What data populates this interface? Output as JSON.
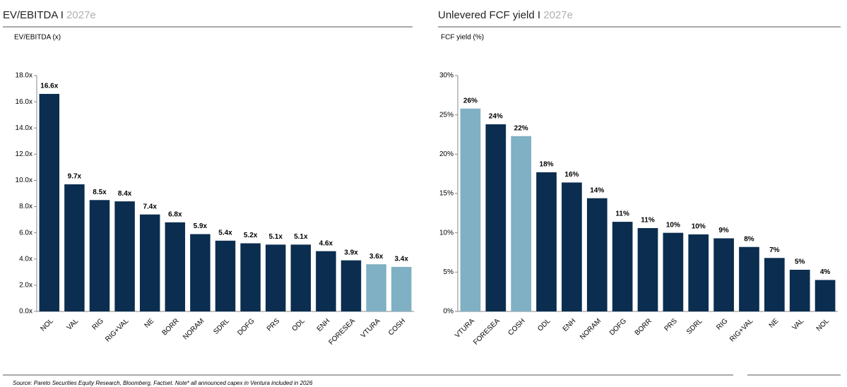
{
  "chart_data": [
    {
      "type": "bar",
      "title": "EV/EBITDA I",
      "subtitle": "2027e",
      "y_label": "EV/EBITDA (x)",
      "categories": [
        "NOL",
        "VAL",
        "RIG",
        "RIG+VAL",
        "NE",
        "BORR",
        "NORAM",
        "SDRL",
        "DOFG",
        "PRS",
        "ODL",
        "ENH",
        "FORESEA",
        "VTURA",
        "COSH"
      ],
      "values": [
        16.6,
        9.7,
        8.5,
        8.4,
        7.4,
        6.8,
        5.9,
        5.4,
        5.2,
        5.1,
        5.1,
        4.6,
        3.9,
        3.6,
        3.4
      ],
      "value_labels": [
        "16.6x",
        "9.7x",
        "8.5x",
        "8.4x",
        "7.4x",
        "6.8x",
        "5.9x",
        "5.4x",
        "5.2x",
        "5.1x",
        "5.1x",
        "4.6x",
        "3.9x",
        "3.6x",
        "3.4x"
      ],
      "colors": [
        "#0b2d4f",
        "#0b2d4f",
        "#0b2d4f",
        "#0b2d4f",
        "#0b2d4f",
        "#0b2d4f",
        "#0b2d4f",
        "#0b2d4f",
        "#0b2d4f",
        "#0b2d4f",
        "#0b2d4f",
        "#0b2d4f",
        "#0b2d4f",
        "#7fb0c3",
        "#7fb0c3"
      ],
      "ylim": [
        0,
        18
      ],
      "yticks": [
        {
          "value": 0,
          "label": "0.0x"
        },
        {
          "value": 2,
          "label": "2.0x"
        },
        {
          "value": 4,
          "label": "4.0x"
        },
        {
          "value": 6,
          "label": "6.0x"
        },
        {
          "value": 8,
          "label": "8.0x"
        },
        {
          "value": 10,
          "label": "10.0x"
        },
        {
          "value": 12,
          "label": "12.0x"
        },
        {
          "value": 14,
          "label": "14.0x"
        },
        {
          "value": 16,
          "label": "16.0x"
        },
        {
          "value": 18,
          "label": "18.0x"
        }
      ]
    },
    {
      "type": "bar",
      "title": "Unlevered FCF yield I",
      "subtitle": "2027e",
      "y_label": "FCF yield (%)",
      "categories": [
        "VTURA",
        "FORESEA",
        "COSH",
        "ODL",
        "ENH",
        "NORAM",
        "DOFG",
        "BORR",
        "PRS",
        "SDRL",
        "RIG",
        "RIG+VAL",
        "NE",
        "VAL",
        "NOL"
      ],
      "values": [
        25.8,
        23.8,
        22.3,
        17.7,
        16.4,
        14.4,
        11.4,
        10.6,
        10.0,
        9.8,
        9.3,
        8.2,
        6.8,
        5.3,
        4.0
      ],
      "value_labels": [
        "26%",
        "24%",
        "22%",
        "18%",
        "16%",
        "14%",
        "11%",
        "11%",
        "10%",
        "10%",
        "9%",
        "8%",
        "7%",
        "5%",
        "4%"
      ],
      "colors": [
        "#7fb0c3",
        "#0b2d4f",
        "#7fb0c3",
        "#0b2d4f",
        "#0b2d4f",
        "#0b2d4f",
        "#0b2d4f",
        "#0b2d4f",
        "#0b2d4f",
        "#0b2d4f",
        "#0b2d4f",
        "#0b2d4f",
        "#0b2d4f",
        "#0b2d4f",
        "#0b2d4f"
      ],
      "ylim": [
        0,
        30
      ],
      "yticks": [
        {
          "value": 0,
          "label": "0%"
        },
        {
          "value": 5,
          "label": "5%"
        },
        {
          "value": 10,
          "label": "10%"
        },
        {
          "value": 15,
          "label": "15%"
        },
        {
          "value": 20,
          "label": "20%"
        },
        {
          "value": 25,
          "label": "25%"
        },
        {
          "value": 30,
          "label": "30%"
        }
      ]
    }
  ],
  "source": "Source: Pareto Securities Equity Research, Bloomberg, Factset. Note* all announced capex in Ventura included in 2026"
}
